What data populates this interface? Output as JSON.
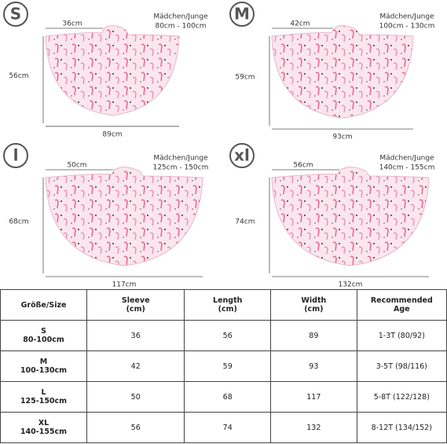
{
  "panels": [
    {
      "size": "S",
      "label": [
        "Mädchen/Junge",
        "80cm - 100cm"
      ],
      "sleeve": "36cm",
      "length": "56cm",
      "width": "89cm"
    },
    {
      "size": "M",
      "label": [
        "Mädchen/Junge",
        "100cm - 130cm"
      ],
      "sleeve": "42cm",
      "length": "59cm",
      "width": "93cm"
    },
    {
      "size": "l",
      "label": [
        "Mädchen/Junge",
        "125cm - 150cm"
      ],
      "sleeve": "50cm",
      "length": "68cm",
      "width": "117cm"
    },
    {
      "size": "xl",
      "label": [
        "Mädchen/Junge",
        "140cm - 155cm"
      ],
      "sleeve": "56cm",
      "length": "74cm",
      "width": "132cm"
    }
  ],
  "table": {
    "header": [
      [
        "Größe/Size"
      ],
      [
        "Sleeve",
        "(cm)"
      ],
      [
        "Length",
        "(cm)"
      ],
      [
        "Width",
        "(cm)"
      ],
      [
        "Recommended",
        "Age"
      ]
    ],
    "rows": [
      [
        [
          "S",
          "80-100cm"
        ],
        "36",
        "56",
        "89",
        "1-3T (80/92)"
      ],
      [
        [
          "M",
          "100-130cm"
        ],
        "42",
        "59",
        "93",
        "3-5T (98/116)"
      ],
      [
        [
          "L",
          "125-150cm"
        ],
        "50",
        "68",
        "117",
        "5-8T (122/128)"
      ],
      [
        [
          "XL",
          "140-155cm"
        ],
        "56",
        "74",
        "132",
        "8-12T (134/152)"
      ]
    ]
  }
}
